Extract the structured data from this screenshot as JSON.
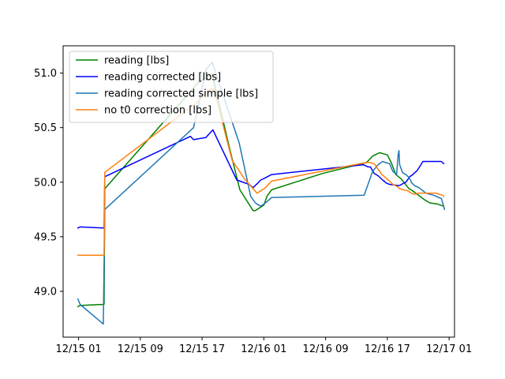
{
  "chart_data": {
    "type": "line",
    "title": "",
    "xlabel": "",
    "ylabel": "",
    "x_tick_labels": [
      "12/15 01",
      "12/15 09",
      "12/15 17",
      "12/16 01",
      "12/16 09",
      "12/16 17",
      "12/17 01"
    ],
    "x_tick_hours": [
      1,
      9,
      17,
      25,
      33,
      41,
      49
    ],
    "xlim_hours": [
      -1.0,
      49.7
    ],
    "y_ticks": [
      49.0,
      49.5,
      50.0,
      50.5,
      51.0
    ],
    "y_tick_labels": [
      "49.0",
      "49.5",
      "50.0",
      "50.5",
      "51.0"
    ],
    "ylim": [
      48.58,
      51.25
    ],
    "legend_position": "upper-left",
    "x_unit_note": "x values are hours after 12/15 00:00",
    "series": [
      {
        "name": "reading [lbs]",
        "color": "#008000",
        "x": [
          0.91,
          1.2,
          4.3,
          4.4,
          16.6,
          18.3,
          20.6,
          21.9,
          23.6,
          23.9,
          25.0,
          25.4,
          26.0,
          32.6,
          38.3,
          39.1,
          40.0,
          41.0,
          41.5,
          42.1,
          42.8,
          43.8,
          44.1,
          45.8,
          46.5,
          47.5,
          48.3
        ],
        "y": [
          48.86,
          48.87,
          48.88,
          49.94,
          50.92,
          50.99,
          50.3,
          49.93,
          49.74,
          49.74,
          49.79,
          49.87,
          49.93,
          50.08,
          50.18,
          50.24,
          50.27,
          50.25,
          50.18,
          50.07,
          50.03,
          49.94,
          49.93,
          49.84,
          49.81,
          49.8,
          49.78
        ]
      },
      {
        "name": "reading corrected [lbs]",
        "color": "#0000ff",
        "x": [
          0.91,
          1.2,
          4.3,
          4.4,
          15.5,
          15.9,
          17.5,
          18.4,
          21.5,
          23.1,
          23.6,
          24.2,
          24.6,
          25.2,
          26.0,
          37.9,
          38.5,
          38.8,
          39.3,
          39.8,
          40.4,
          40.9,
          41.3,
          42.3,
          42.6,
          43.1,
          43.4,
          43.9,
          44.3,
          44.9,
          45.6,
          46.5,
          47.5,
          48.0,
          48.3
        ],
        "y": [
          49.58,
          49.59,
          49.58,
          50.05,
          50.42,
          50.39,
          50.41,
          50.48,
          50.02,
          49.98,
          49.95,
          49.99,
          50.02,
          50.04,
          50.07,
          50.16,
          50.14,
          50.14,
          50.08,
          50.06,
          50.02,
          49.99,
          49.98,
          49.97,
          49.97,
          49.99,
          50.0,
          50.05,
          50.07,
          50.11,
          50.19,
          50.19,
          50.19,
          50.19,
          50.17
        ]
      },
      {
        "name": "reading corrected simple [lbs]",
        "color": "#1f77b4",
        "x": [
          0.91,
          1.2,
          4.2,
          4.4,
          15.9,
          17.5,
          18.3,
          21.8,
          23.3,
          23.9,
          24.6,
          25.4,
          26.0,
          38.0,
          38.6,
          39.1,
          39.8,
          40.4,
          40.8,
          41.3,
          41.7,
          42.2,
          42.4,
          42.5,
          42.6,
          42.9,
          43.1,
          43.4,
          43.7,
          44.0,
          44.1,
          44.5,
          45.1,
          46.0,
          47.0,
          48.0,
          48.3,
          48.4
        ],
        "y": [
          48.93,
          48.88,
          48.7,
          49.75,
          50.5,
          51.03,
          51.1,
          50.36,
          49.87,
          49.81,
          49.78,
          49.82,
          49.86,
          49.88,
          50.0,
          50.1,
          50.16,
          50.19,
          50.18,
          50.17,
          50.1,
          50.07,
          50.25,
          50.29,
          50.16,
          50.1,
          50.08,
          50.07,
          50.05,
          50.02,
          50.0,
          49.97,
          49.95,
          49.9,
          49.88,
          49.85,
          49.78,
          49.75
        ]
      },
      {
        "name": "no t0 correction [lbs]",
        "color": "#ff7f0e",
        "x": [
          0.91,
          1.2,
          4.3,
          4.4,
          16.5,
          17.8,
          18.5,
          20.9,
          22.5,
          23.6,
          24.1,
          24.6,
          25.2,
          26.0,
          38.2,
          38.8,
          39.3,
          39.8,
          40.3,
          40.8,
          41.3,
          41.7,
          42.3,
          42.6,
          43.1,
          43.7,
          44.1,
          44.5,
          45.0,
          45.6,
          46.2,
          46.8,
          47.3,
          47.7,
          48.2,
          48.3
        ],
        "y": [
          49.33,
          49.33,
          49.33,
          50.09,
          50.74,
          50.84,
          50.86,
          50.2,
          50.03,
          49.94,
          49.9,
          49.92,
          49.95,
          50.01,
          50.18,
          50.18,
          50.17,
          50.12,
          50.07,
          50.04,
          50.01,
          49.98,
          49.96,
          49.94,
          49.93,
          49.92,
          49.9,
          49.89,
          49.9,
          49.9,
          49.9,
          49.9,
          49.9,
          49.89,
          49.88,
          49.87
        ]
      }
    ]
  }
}
